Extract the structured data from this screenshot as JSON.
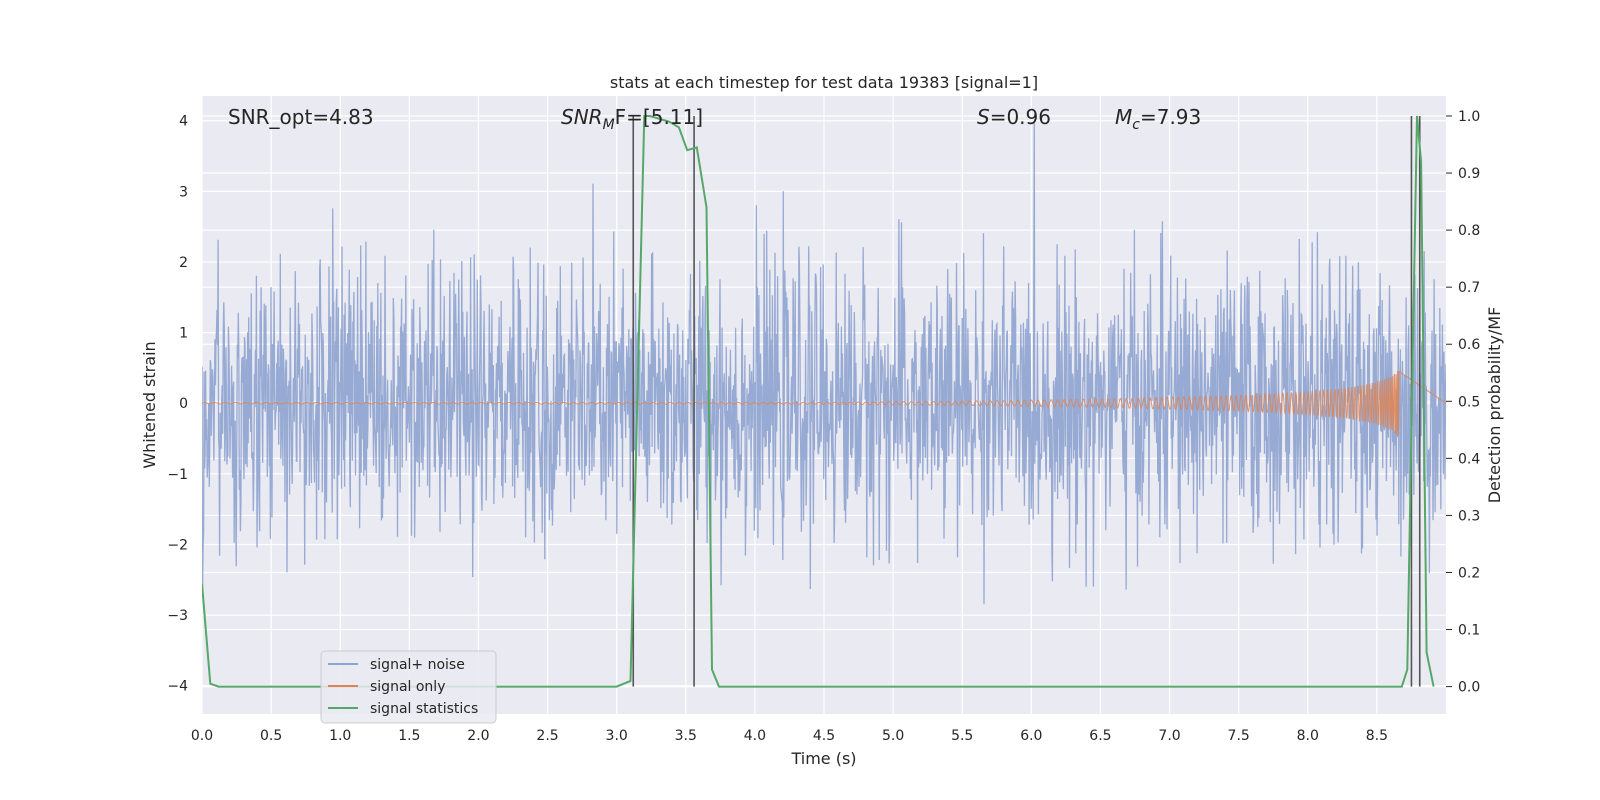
{
  "chart_data": {
    "type": "line",
    "title": "stats at each timestep for test data 19383 [signal=1]",
    "xlabel": "Time (s)",
    "ylabel": "Whitened strain",
    "y2label": "Detection probability/MF",
    "xlim": [
      0,
      9.0
    ],
    "ylim": [
      -4.4,
      4.35
    ],
    "y2lim": [
      -0.048,
      1.035
    ],
    "x_ticks": [
      "0.0",
      "0.5",
      "1.0",
      "1.5",
      "2.0",
      "2.5",
      "3.0",
      "3.5",
      "4.0",
      "4.5",
      "5.0",
      "5.5",
      "6.0",
      "6.5",
      "7.0",
      "7.5",
      "8.0",
      "8.5"
    ],
    "y_ticks": [
      "4",
      "3",
      "2",
      "1",
      "0",
      "−1",
      "−2",
      "−3",
      "−4"
    ],
    "y2_ticks": [
      "1.0",
      "0.9",
      "0.8",
      "0.7",
      "0.6",
      "0.5",
      "0.4",
      "0.3",
      "0.2",
      "0.1",
      "0.0"
    ],
    "grid": true,
    "legend_position": "lower-left",
    "annotations": {
      "snr_opt": "SNR_opt=4.83",
      "snr_mf_main": "SNR",
      "snr_mf_sub": "M",
      "snr_mf_rest": "F=[5.11]",
      "s_main": "S",
      "s_rest": "=0.96",
      "mc_main": "M",
      "mc_sub": "c",
      "mc_rest": "=7.93"
    },
    "vertical_lines_x": [
      3.12,
      3.56,
      8.75,
      8.81
    ],
    "series": [
      {
        "name": "signal+ noise",
        "color": "#8ea3cf",
        "noise_amplitude_typical": 1.6,
        "noise_amplitude_max": 4.0,
        "x_range": [
          0,
          9.0
        ]
      },
      {
        "name": "signal only",
        "color": "#dd8452",
        "x": [
          0,
          4.5,
          5.5,
          6.5,
          7.5,
          8.0,
          8.3,
          8.5,
          8.6,
          8.66
        ],
        "envelope": [
          0.01,
          0.015,
          0.03,
          0.06,
          0.11,
          0.16,
          0.22,
          0.3,
          0.38,
          0.48
        ]
      },
      {
        "name": "signal statistics",
        "color": "#55a868",
        "x": [
          0,
          0.06,
          0.12,
          3.0,
          3.1,
          3.2,
          3.24,
          3.38,
          3.45,
          3.51,
          3.58,
          3.65,
          3.69,
          3.74,
          8.68,
          8.72,
          8.75,
          8.79,
          8.82,
          8.86,
          8.91
        ],
        "y": [
          0.18,
          0.005,
          0.0,
          0.0,
          0.01,
          1.0,
          1.0,
          0.99,
          0.98,
          0.94,
          0.945,
          0.84,
          0.03,
          0.0,
          0.0,
          0.03,
          0.45,
          1.0,
          0.92,
          0.06,
          0.0
        ]
      }
    ]
  }
}
